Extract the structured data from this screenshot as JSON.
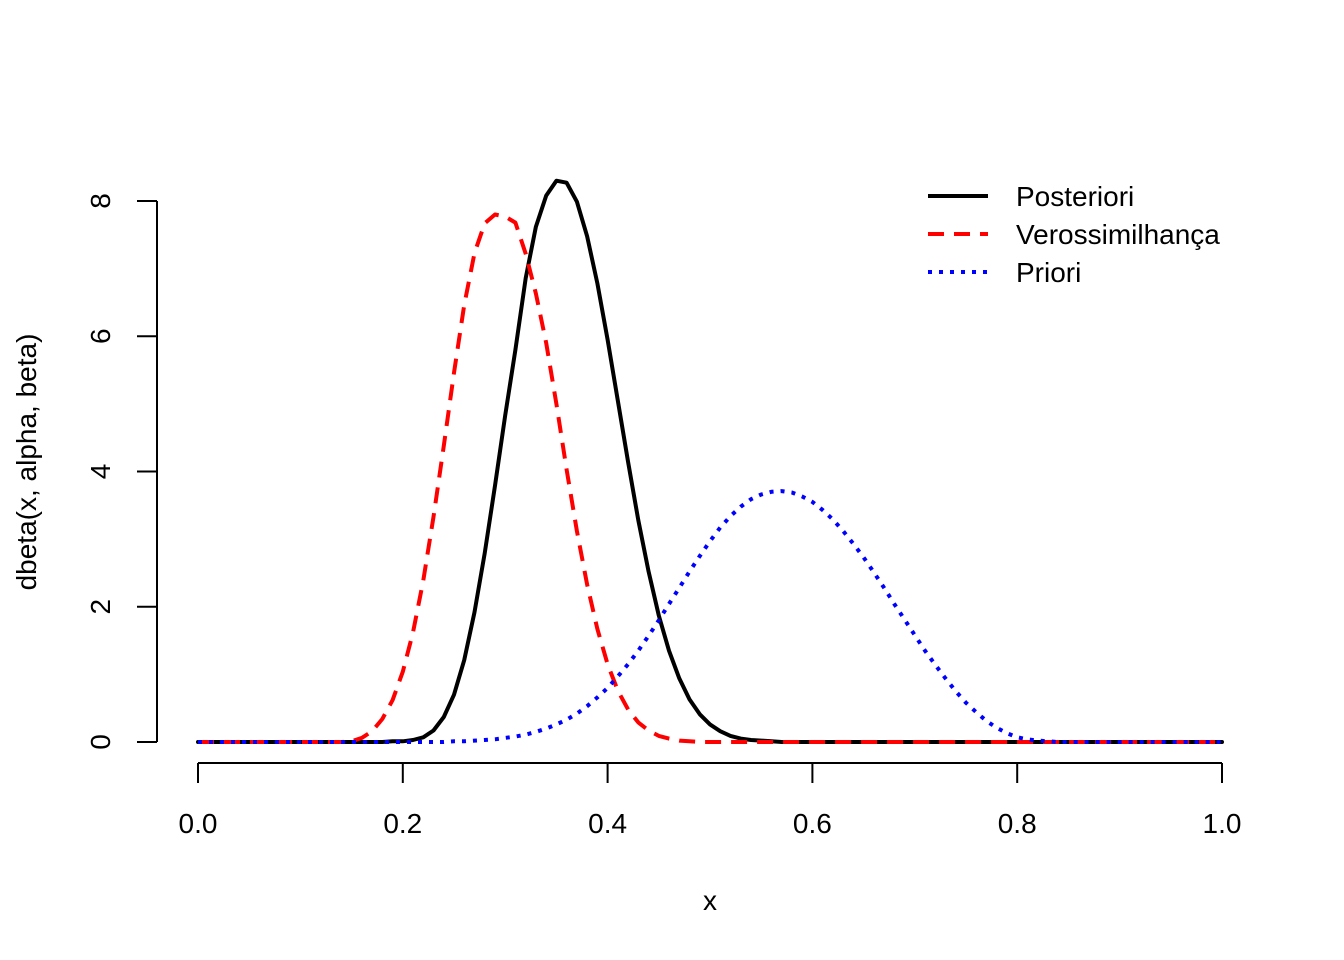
{
  "chart_data": {
    "type": "line",
    "title": "",
    "xlabel": "x",
    "ylabel": "dbeta(x, alpha, beta)",
    "xlim": [
      0,
      1
    ],
    "ylim": [
      0,
      8.3
    ],
    "xticks": [
      "0.0",
      "0.2",
      "0.4",
      "0.6",
      "0.8",
      "1.0"
    ],
    "xtick_values": [
      0,
      0.2,
      0.4,
      0.6,
      0.8,
      1.0
    ],
    "yticks": [
      "0",
      "2",
      "4",
      "6",
      "8"
    ],
    "ytick_values": [
      0,
      2,
      4,
      6,
      8
    ],
    "grid": false,
    "legend_position": "top-right",
    "x": [
      0.0,
      0.01,
      0.02,
      0.03,
      0.04,
      0.05,
      0.06,
      0.07,
      0.08,
      0.09,
      0.1,
      0.11,
      0.12,
      0.13,
      0.14,
      0.15,
      0.16,
      0.17,
      0.18,
      0.19,
      0.2,
      0.21,
      0.22,
      0.23,
      0.24,
      0.25,
      0.26,
      0.27,
      0.28,
      0.29,
      0.3,
      0.31,
      0.32,
      0.33,
      0.34,
      0.35,
      0.36,
      0.37,
      0.38,
      0.39,
      0.4,
      0.41,
      0.42,
      0.43,
      0.44,
      0.45,
      0.46,
      0.47,
      0.48,
      0.49,
      0.5,
      0.51,
      0.52,
      0.53,
      0.54,
      0.55,
      0.56,
      0.57,
      0.58,
      0.59,
      0.6,
      0.61,
      0.62,
      0.63,
      0.64,
      0.65,
      0.66,
      0.67,
      0.68,
      0.69,
      0.7,
      0.71,
      0.72,
      0.73,
      0.74,
      0.75,
      0.76,
      0.77,
      0.78,
      0.79,
      0.8,
      0.81,
      0.82,
      0.83,
      0.84,
      0.85,
      0.86,
      0.87,
      0.88,
      0.89,
      0.9,
      0.91,
      0.92,
      0.93,
      0.94,
      0.95,
      0.96,
      0.97,
      0.98,
      0.99,
      1.0
    ],
    "series": [
      {
        "name": "Posteriori",
        "color": "#000000",
        "dash": "solid",
        "values": [
          0,
          0,
          0,
          0,
          0,
          0,
          0,
          0,
          0,
          0,
          0,
          0,
          0,
          0,
          0,
          0,
          0,
          0,
          0,
          0.01,
          0.01,
          0.03,
          0.07,
          0.17,
          0.37,
          0.7,
          1.21,
          1.92,
          2.79,
          3.79,
          4.83,
          5.8,
          6.86,
          7.62,
          8.08,
          8.3,
          8.27,
          7.99,
          7.48,
          6.78,
          5.95,
          5.05,
          4.14,
          3.28,
          2.52,
          1.87,
          1.35,
          0.94,
          0.63,
          0.41,
          0.26,
          0.16,
          0.09,
          0.05,
          0.03,
          0.02,
          0.01,
          0,
          0,
          0,
          0,
          0,
          0,
          0,
          0,
          0,
          0,
          0,
          0,
          0,
          0,
          0,
          0,
          0,
          0,
          0,
          0,
          0,
          0,
          0,
          0,
          0,
          0,
          0,
          0,
          0,
          0,
          0,
          0,
          0,
          0,
          0,
          0,
          0,
          0,
          0,
          0,
          0,
          0,
          0,
          0
        ]
      },
      {
        "name": "Verossimilhança",
        "color": "#ff0000",
        "dash": "dashed",
        "values": [
          0,
          0,
          0,
          0,
          0,
          0,
          0,
          0,
          0,
          0,
          0,
          0,
          0,
          0,
          0,
          0.01,
          0.06,
          0.16,
          0.34,
          0.62,
          1.04,
          1.62,
          2.39,
          3.33,
          4.38,
          5.46,
          6.46,
          7.23,
          7.67,
          7.8,
          7.77,
          7.68,
          7.22,
          6.63,
          5.9,
          5.0,
          4.03,
          3.12,
          2.33,
          1.67,
          1.15,
          0.76,
          0.48,
          0.29,
          0.17,
          0.09,
          0.05,
          0.02,
          0.01,
          0,
          0,
          0,
          0,
          0,
          0,
          0,
          0,
          0,
          0,
          0,
          0,
          0,
          0,
          0,
          0,
          0,
          0,
          0,
          0,
          0,
          0,
          0,
          0,
          0,
          0,
          0,
          0,
          0,
          0,
          0,
          0,
          0,
          0,
          0,
          0,
          0,
          0,
          0,
          0,
          0,
          0,
          0,
          0,
          0,
          0,
          0,
          0,
          0,
          0,
          0,
          0
        ]
      },
      {
        "name": "Priori",
        "color": "#0000ff",
        "dash": "dotted",
        "values": [
          0,
          0,
          0,
          0,
          0,
          0,
          0,
          0,
          0,
          0,
          0,
          0,
          0,
          0,
          0,
          0,
          0,
          0,
          0,
          0,
          0,
          0,
          0,
          0,
          0,
          0.01,
          0.01,
          0.02,
          0.03,
          0.04,
          0.06,
          0.08,
          0.11,
          0.15,
          0.2,
          0.26,
          0.33,
          0.42,
          0.53,
          0.66,
          0.8,
          0.97,
          1.15,
          1.35,
          1.57,
          1.8,
          2.04,
          2.28,
          2.52,
          2.75,
          2.97,
          3.17,
          3.34,
          3.48,
          3.59,
          3.66,
          3.7,
          3.71,
          3.69,
          3.63,
          3.55,
          3.43,
          3.29,
          3.12,
          2.93,
          2.73,
          2.51,
          2.28,
          2.04,
          1.81,
          1.58,
          1.35,
          1.14,
          0.94,
          0.75,
          0.58,
          0.44,
          0.31,
          0.21,
          0.13,
          0.07,
          0.04,
          0.02,
          0.01,
          0,
          0,
          0,
          0,
          0,
          0,
          0,
          0,
          0,
          0,
          0,
          0,
          0,
          0,
          0,
          0,
          0
        ]
      }
    ]
  }
}
